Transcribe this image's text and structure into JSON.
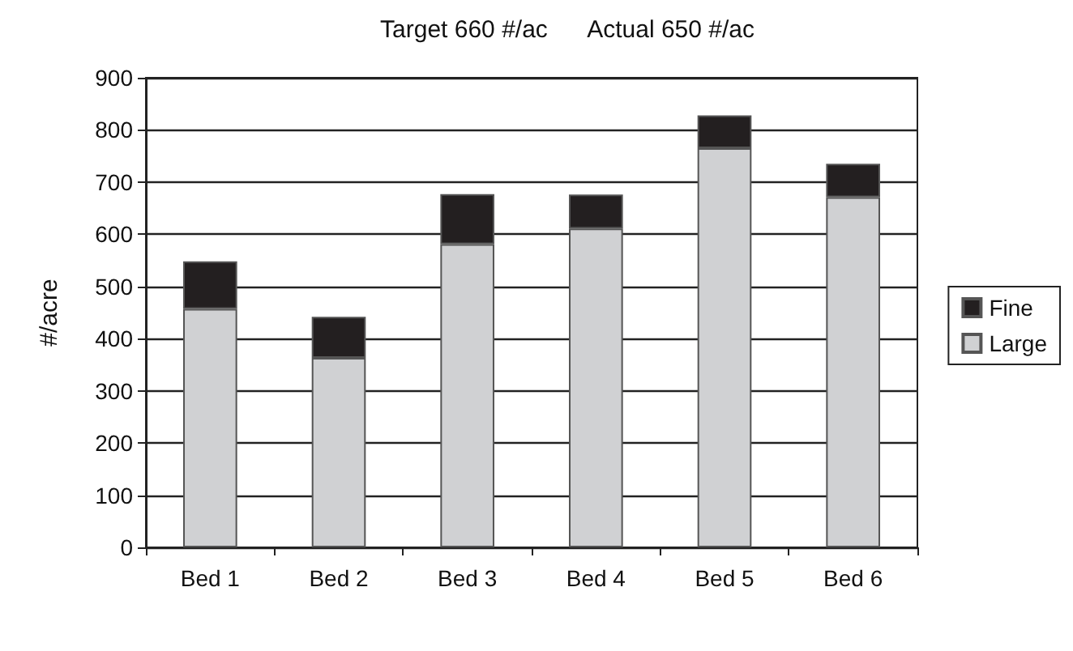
{
  "chart_data": {
    "type": "bar",
    "title": "Target 660 #/ac      Actual 650 #/ac",
    "ylabel": "#/acre",
    "categories": [
      "Bed 1",
      "Bed 2",
      "Bed 3",
      "Bed 4",
      "Bed 5",
      "Bed 6"
    ],
    "stacked": true,
    "series": [
      {
        "name": "Large",
        "color": "#d0d1d3",
        "values": [
          457,
          363,
          581,
          611,
          765,
          671
        ]
      },
      {
        "name": "Fine",
        "color": "#231f20",
        "values": [
          91,
          79,
          96,
          65,
          63,
          64
        ]
      }
    ],
    "ylim": [
      0,
      900
    ],
    "yticks": [
      0,
      100,
      200,
      300,
      400,
      500,
      600,
      700,
      800,
      900
    ],
    "grid": "y",
    "legend": "right"
  }
}
